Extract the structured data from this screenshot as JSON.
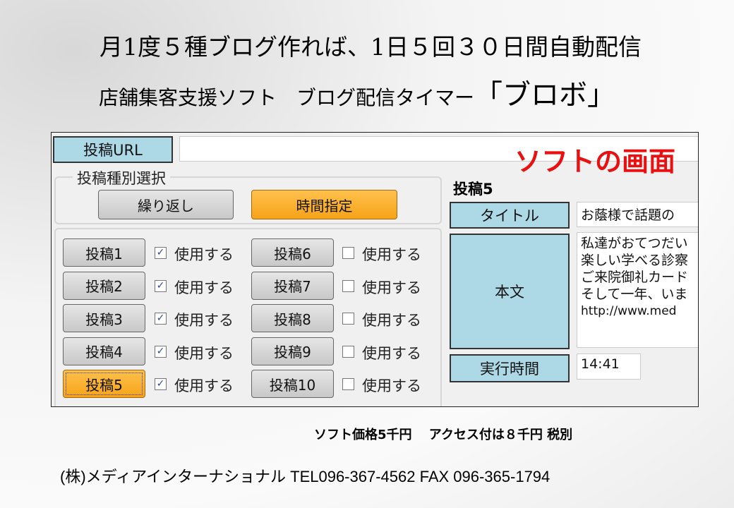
{
  "headline": {
    "line1": "月1度５種ブログ作れば、1日５回３０日間自動配信",
    "line2": "店舗集客支援ソフト　ブログ配信タイマー",
    "brand": "「ブロボ」"
  },
  "app": {
    "url_label": "投稿URL",
    "url_value": "",
    "overlay": "ソフトの画面",
    "type_group": {
      "legend": "投稿種別選択",
      "repeat": "繰り返し",
      "time": "時間指定",
      "selected": "時間指定"
    },
    "posts": [
      {
        "label": "投稿1",
        "use": "使用する",
        "checked": true
      },
      {
        "label": "投稿2",
        "use": "使用する",
        "checked": true
      },
      {
        "label": "投稿3",
        "use": "使用する",
        "checked": true
      },
      {
        "label": "投稿4",
        "use": "使用する",
        "checked": true
      },
      {
        "label": "投稿5",
        "use": "使用する",
        "checked": true,
        "selected": true
      },
      {
        "label": "投稿6",
        "use": "使用する",
        "checked": false
      },
      {
        "label": "投稿7",
        "use": "使用する",
        "checked": false
      },
      {
        "label": "投稿8",
        "use": "使用する",
        "checked": false
      },
      {
        "label": "投稿9",
        "use": "使用する",
        "checked": false
      },
      {
        "label": "投稿10",
        "use": "使用する",
        "checked": false
      }
    ],
    "detail": {
      "heading": "投稿5",
      "title_label": "タイトル",
      "title_value": "お蔭様で話題の",
      "body_label": "本文",
      "body_lines": [
        "私達がおてつだい",
        "楽しい学べる診察",
        "ご来院御礼カード",
        "そして一年、いま",
        "http://www.med"
      ],
      "time_label": "実行時間",
      "time_value": "14:41"
    }
  },
  "price": "ソフト価格5千円　 アクセス付は８千円  税別",
  "company": "(株)メディアインターナショナル   TEL096-367-4562    FAX 096-365-1794",
  "colors": {
    "label_bg": "#add8e6",
    "active_button": "#f6a318",
    "overlay_text": "#e81010"
  }
}
